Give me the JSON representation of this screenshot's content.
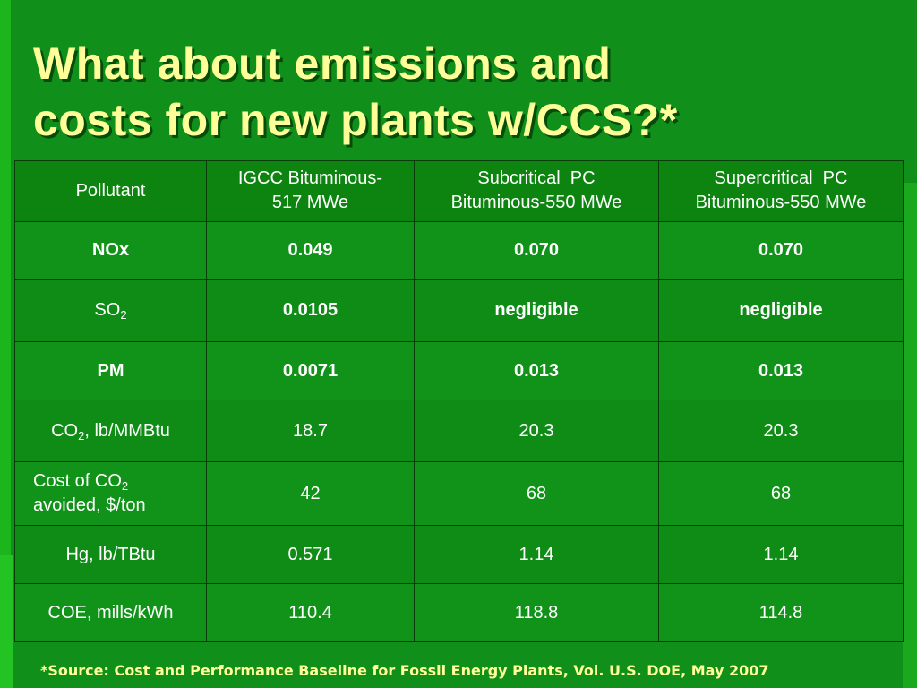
{
  "slide": {
    "title_line1": "What about emissions and",
    "title_line2": "costs for new plants w/CCS?*"
  },
  "table": {
    "headers": [
      "Pollutant",
      "IGCC Bituminous-517 MWe",
      "Subcritical  PC Bituminous-550 MWe",
      "Supercritical  PC Bituminous-550 MWe"
    ],
    "header_lines": {
      "igcc_1": "IGCC Bituminous-",
      "igcc_2": "517 MWe",
      "sub_1": "Subcritical  PC",
      "sub_2": "Bituminous-550 MWe",
      "super_1": "Supercritical  PC",
      "super_2": "Bituminous-550 MWe"
    },
    "rows": [
      {
        "label": "NOx",
        "values": [
          "0.049",
          "0.070",
          "0.070"
        ]
      },
      {
        "label": "SO",
        "label_sub": "2",
        "values": [
          "0.0105",
          "negligible",
          "negligible"
        ]
      },
      {
        "label": "PM",
        "values": [
          "0.0071",
          "0.013",
          "0.013"
        ]
      },
      {
        "label": "CO",
        "label_sub": "2",
        "label_suffix": ", lb/MMBtu",
        "values": [
          "18.7",
          "20.3",
          "20.3"
        ]
      },
      {
        "label": "Cost of CO",
        "label_sub": "2",
        "label_line2": "avoided, $/ton",
        "values": [
          "42",
          "68",
          "68"
        ]
      },
      {
        "label": "Hg, lb/TBtu",
        "values": [
          "0.571",
          "1.14",
          "1.14"
        ]
      },
      {
        "label": "COE, mills/kWh",
        "values": [
          "110.4",
          "118.8",
          "114.8"
        ]
      }
    ]
  },
  "footnote": "*Source:  Cost and Performance Baseline for Fossil Energy Plants, Vol. U.S. DOE, May 2007",
  "colors": {
    "background": "#0f8a14",
    "title": "#ffff99",
    "table_text": "#ffffff",
    "border": "#083c0b",
    "footnote": "#ffff99"
  }
}
